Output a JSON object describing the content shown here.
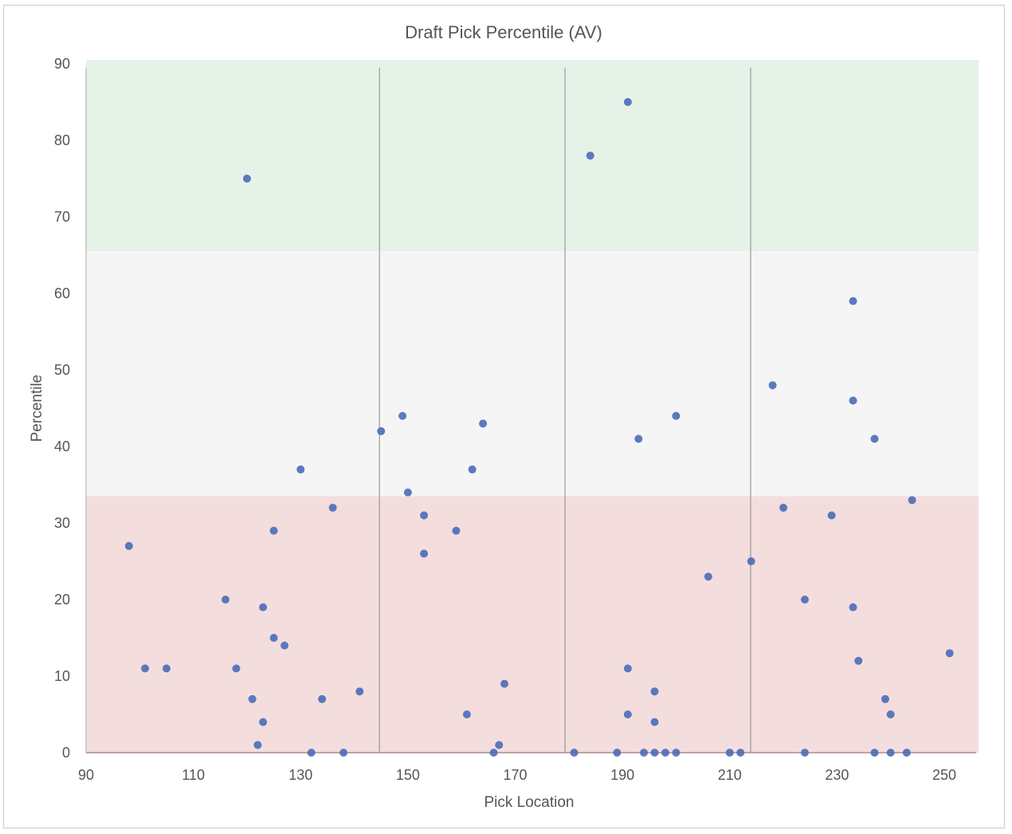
{
  "chart_data": {
    "type": "scatter",
    "title": "Draft Pick Percentile (AV)",
    "xlabel": "Pick Location",
    "ylabel": "Percentile",
    "xlim": [
      90,
      256
    ],
    "ylim": [
      0,
      90
    ],
    "xticks": [
      90,
      110,
      130,
      150,
      170,
      190,
      210,
      230,
      250
    ],
    "yticks": [
      0,
      10,
      20,
      30,
      40,
      50,
      60,
      70,
      80,
      90
    ],
    "bands": [
      {
        "from": 65.5,
        "to": 90.5,
        "color": "#e5f2e7"
      },
      {
        "from": 33.5,
        "to": 65.5,
        "color": "#f5f5f6"
      },
      {
        "from": 0,
        "to": 33.5,
        "color": "#f3dedd"
      }
    ],
    "vlines": [
      144.7,
      179.3,
      213.9
    ],
    "point_color": "#4a6cb8",
    "points": [
      [
        120,
        75
      ],
      [
        184,
        78
      ],
      [
        191,
        85
      ],
      [
        233,
        59
      ],
      [
        218,
        48
      ],
      [
        233,
        46
      ],
      [
        237,
        41
      ],
      [
        200,
        44
      ],
      [
        193,
        41
      ],
      [
        149,
        44
      ],
      [
        145,
        42
      ],
      [
        164,
        43
      ],
      [
        162,
        37
      ],
      [
        130,
        37
      ],
      [
        150,
        34
      ],
      [
        136,
        32
      ],
      [
        153,
        31
      ],
      [
        125,
        29
      ],
      [
        159,
        29
      ],
      [
        153,
        26
      ],
      [
        98,
        27
      ],
      [
        116,
        20
      ],
      [
        123,
        19
      ],
      [
        125,
        15
      ],
      [
        127,
        14
      ],
      [
        101,
        11
      ],
      [
        105,
        11
      ],
      [
        118,
        11
      ],
      [
        121,
        7
      ],
      [
        123,
        4
      ],
      [
        122,
        1
      ],
      [
        132,
        0
      ],
      [
        138,
        0
      ],
      [
        134,
        7
      ],
      [
        141,
        8
      ],
      [
        161,
        5
      ],
      [
        168,
        9
      ],
      [
        167,
        1
      ],
      [
        166,
        0
      ],
      [
        181,
        0
      ],
      [
        189,
        0
      ],
      [
        191,
        11
      ],
      [
        191,
        5
      ],
      [
        194,
        0
      ],
      [
        196,
        8
      ],
      [
        196,
        4
      ],
      [
        196,
        0
      ],
      [
        198,
        0
      ],
      [
        200,
        0
      ],
      [
        206,
        23
      ],
      [
        210,
        0
      ],
      [
        212,
        0
      ],
      [
        214,
        25
      ],
      [
        220,
        32
      ],
      [
        224,
        20
      ],
      [
        224,
        0
      ],
      [
        229,
        31
      ],
      [
        233,
        19
      ],
      [
        234,
        12
      ],
      [
        237,
        0
      ],
      [
        239,
        7
      ],
      [
        240,
        5
      ],
      [
        240,
        0
      ],
      [
        243,
        0
      ],
      [
        244,
        33
      ],
      [
        251,
        13
      ]
    ]
  }
}
